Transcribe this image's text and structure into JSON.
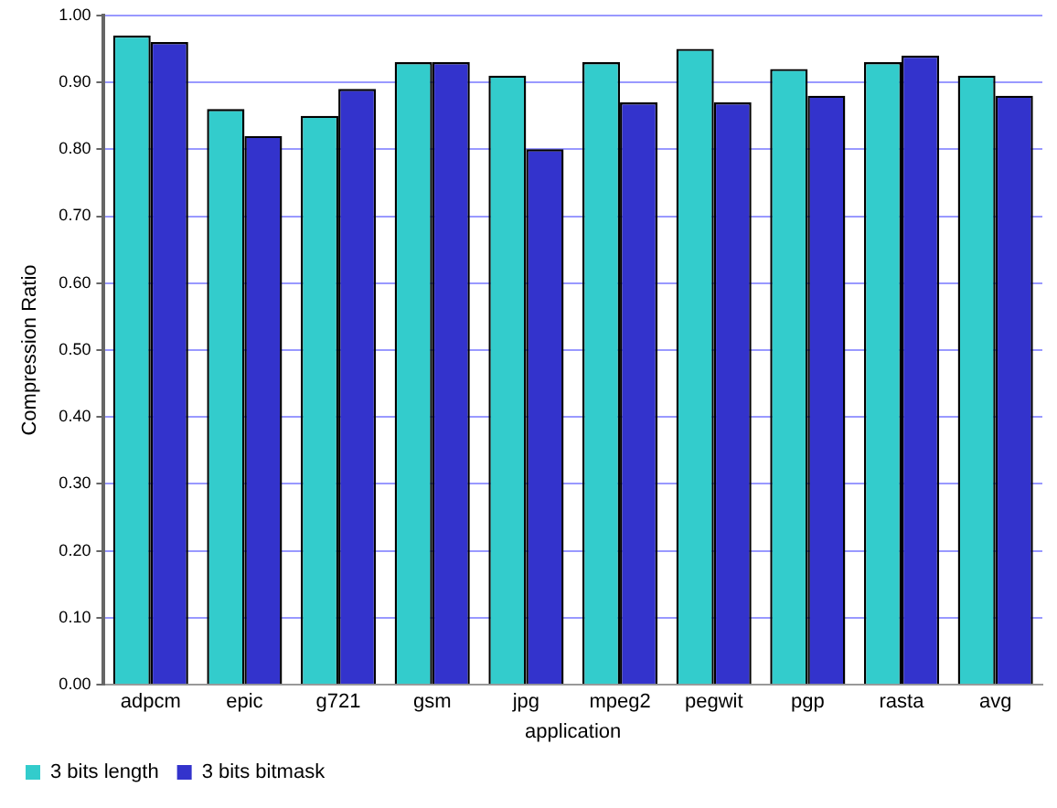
{
  "chart_data": {
    "type": "bar",
    "xlabel": "application",
    "ylabel": "Compression Ratio",
    "categories": [
      "adpcm",
      "epic",
      "g721",
      "gsm",
      "jpg",
      "mpeg2",
      "pegwit",
      "pgp",
      "rasta",
      "avg"
    ],
    "series": [
      {
        "name": "3 bits length",
        "color": "#33cccc",
        "values": [
          0.97,
          0.86,
          0.85,
          0.93,
          0.91,
          0.93,
          0.95,
          0.92,
          0.93,
          0.91
        ]
      },
      {
        "name": "3 bits bitmask",
        "color": "#3333cc",
        "values": [
          0.96,
          0.82,
          0.89,
          0.93,
          0.8,
          0.87,
          0.87,
          0.88,
          0.94,
          0.88
        ]
      }
    ],
    "ylim": [
      0,
      1
    ],
    "yticks": [
      {
        "value": 0,
        "label": "0.00"
      },
      {
        "value": 0.1,
        "label": "0.10"
      },
      {
        "value": 0.2,
        "label": "0.20"
      },
      {
        "value": 0.3,
        "label": "0.30"
      },
      {
        "value": 0.4,
        "label": "0.40"
      },
      {
        "value": 0.5,
        "label": "0.50"
      },
      {
        "value": 0.6,
        "label": "0.60"
      },
      {
        "value": 0.7,
        "label": "0.70"
      },
      {
        "value": 0.8,
        "label": "0.80"
      },
      {
        "value": 0.9,
        "label": "0.90"
      },
      {
        "value": 1,
        "label": "1.00"
      }
    ],
    "grid": "y",
    "legend": "bottom left"
  }
}
